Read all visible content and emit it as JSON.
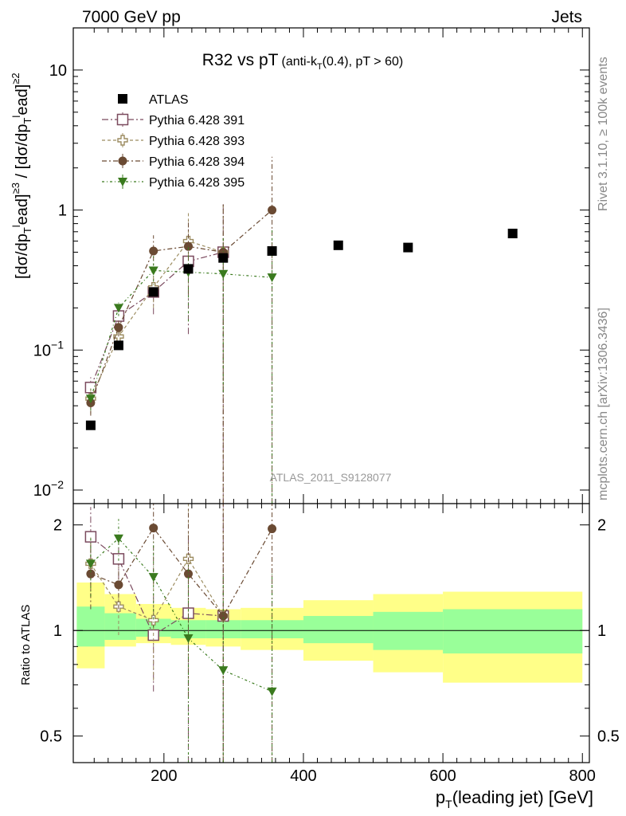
{
  "header": {
    "left": "7000 GeV pp",
    "right": "Jets",
    "side_top": "Rivet 3.1.10, ≥ 100k events",
    "side_bottom": "mcplots.cern.ch [arXiv:1306.3436]"
  },
  "chart_data": {
    "type": "scatter",
    "title_main": "R32 vs pT",
    "title_sub_1": "(anti-k",
    "title_sub_t": "T",
    "title_sub_2": "(0.4), pT > 60)",
    "watermark": "ATLAS_2011_S9128077",
    "yscale": "log",
    "ylim": [
      0.008,
      20
    ],
    "xlim": [
      70,
      810
    ],
    "xlabel": "p_T(leading jet) [GeV]",
    "xlabel_main": "p",
    "xlabel_sub": "T",
    "xlabel_rest": "(leading jet) [GeV]",
    "ylabel": "[dσ/dp_T^lead]^≥3 / [dσ/dp_T^lead]^≥2",
    "y_ticks": [
      {
        "value": 10,
        "label": "10"
      },
      {
        "value": 1,
        "label": "1"
      },
      {
        "value": 0.1,
        "label": "10",
        "exp": "−1"
      },
      {
        "value": 0.01,
        "label": "10",
        "exp": "−2"
      }
    ],
    "x_ticks": [
      {
        "value": 200,
        "label": "200"
      },
      {
        "value": 400,
        "label": "400"
      },
      {
        "value": 600,
        "label": "600"
      },
      {
        "value": 800,
        "label": "800"
      }
    ],
    "legend_position": "top-left",
    "data": {
      "name": "ATLAS",
      "x": [
        95,
        135,
        185,
        235,
        285,
        355,
        450,
        550,
        700
      ],
      "y": [
        0.029,
        0.108,
        0.26,
        0.38,
        0.455,
        0.51,
        0.56,
        0.54,
        0.68
      ]
    },
    "series": [
      {
        "name": "Pythia 6.428 391",
        "color": "#7b4a5e",
        "marker": "open-square",
        "x": [
          95,
          135,
          185,
          235,
          285
        ],
        "y": [
          0.054,
          0.175,
          0.26,
          0.43,
          0.5
        ],
        "err": [
          0.01,
          0.02,
          0.08,
          0.3,
          0.6
        ]
      },
      {
        "name": "Pythia 6.428 393",
        "color": "#9c8c60",
        "marker": "open-cross",
        "x": [
          95,
          135,
          185,
          235,
          285
        ],
        "y": [
          0.045,
          0.125,
          0.28,
          0.6,
          0.5
        ],
        "err": [
          0.01,
          0.02,
          0.08,
          0.35,
          0.6
        ]
      },
      {
        "name": "Pythia 6.428 394",
        "color": "#6a4a33",
        "marker": "filled-circle",
        "x": [
          95,
          135,
          185,
          235,
          285,
          355
        ],
        "y": [
          0.042,
          0.145,
          0.51,
          0.55,
          0.5,
          1.0
        ],
        "err": [
          0.008,
          0.02,
          0.15,
          0.3,
          0.6,
          1.4
        ]
      },
      {
        "name": "Pythia 6.428 395",
        "color": "#3a7a1e",
        "marker": "filled-triangle-down",
        "x": [
          95,
          135,
          185,
          235,
          285,
          355
        ],
        "y": [
          0.045,
          0.2,
          0.37,
          0.36,
          0.35,
          0.33
        ],
        "err": [
          0.008,
          0.025,
          0.1,
          0.2,
          0.3,
          0.4
        ]
      }
    ],
    "ratio": {
      "ylabel": "Ratio to ATLAS",
      "yscale": "log",
      "ylim": [
        0.42,
        2.3
      ],
      "y_ticks": [
        {
          "value": 2,
          "label": "2"
        },
        {
          "value": 1,
          "label": "1"
        },
        {
          "value": 0.5,
          "label": "0.5"
        }
      ],
      "bands": [
        {
          "x0": 75,
          "x1": 115,
          "yellow": [
            0.78,
            1.37
          ],
          "green": [
            0.9,
            1.17
          ]
        },
        {
          "x0": 115,
          "x1": 160,
          "yellow": [
            0.9,
            1.27
          ],
          "green": [
            0.94,
            1.12
          ]
        },
        {
          "x0": 160,
          "x1": 210,
          "yellow": [
            0.92,
            1.19
          ],
          "green": [
            0.96,
            1.08
          ]
        },
        {
          "x0": 210,
          "x1": 260,
          "yellow": [
            0.91,
            1.16
          ],
          "green": [
            0.95,
            1.07
          ]
        },
        {
          "x0": 260,
          "x1": 310,
          "yellow": [
            0.9,
            1.15
          ],
          "green": [
            0.95,
            1.07
          ]
        },
        {
          "x0": 310,
          "x1": 400,
          "yellow": [
            0.88,
            1.16
          ],
          "green": [
            0.95,
            1.07
          ]
        },
        {
          "x0": 400,
          "x1": 500,
          "yellow": [
            0.82,
            1.22
          ],
          "green": [
            0.92,
            1.1
          ]
        },
        {
          "x0": 500,
          "x1": 600,
          "yellow": [
            0.76,
            1.27
          ],
          "green": [
            0.88,
            1.13
          ]
        },
        {
          "x0": 600,
          "x1": 800,
          "yellow": [
            0.71,
            1.29
          ],
          "green": [
            0.86,
            1.15
          ]
        }
      ],
      "series": [
        {
          "name": "Pythia 6.428 391",
          "x": [
            95,
            135,
            185,
            235,
            285
          ],
          "y": [
            1.85,
            1.6,
            0.97,
            1.12,
            1.1
          ],
          "err": [
            0.4,
            0.2,
            0.3,
            0.8,
            1.3
          ]
        },
        {
          "name": "Pythia 6.428 393",
          "x": [
            95,
            135,
            185,
            235,
            285
          ],
          "y": [
            1.55,
            1.17,
            1.07,
            1.6,
            1.1
          ],
          "err": [
            0.3,
            0.2,
            0.35,
            0.9,
            1.3
          ]
        },
        {
          "name": "Pythia 6.428 394",
          "x": [
            95,
            135,
            185,
            235,
            285,
            355
          ],
          "y": [
            1.45,
            1.35,
            1.96,
            1.45,
            1.1,
            1.95
          ],
          "err": [
            0.3,
            0.2,
            0.6,
            0.8,
            1.3,
            2.5
          ]
        },
        {
          "name": "Pythia 6.428 395",
          "x": [
            95,
            135,
            185,
            235,
            285,
            355
          ],
          "y": [
            1.55,
            1.83,
            1.42,
            0.95,
            0.77,
            0.67
          ],
          "err": [
            0.3,
            0.25,
            0.4,
            0.6,
            0.7,
            0.8
          ]
        }
      ]
    }
  }
}
